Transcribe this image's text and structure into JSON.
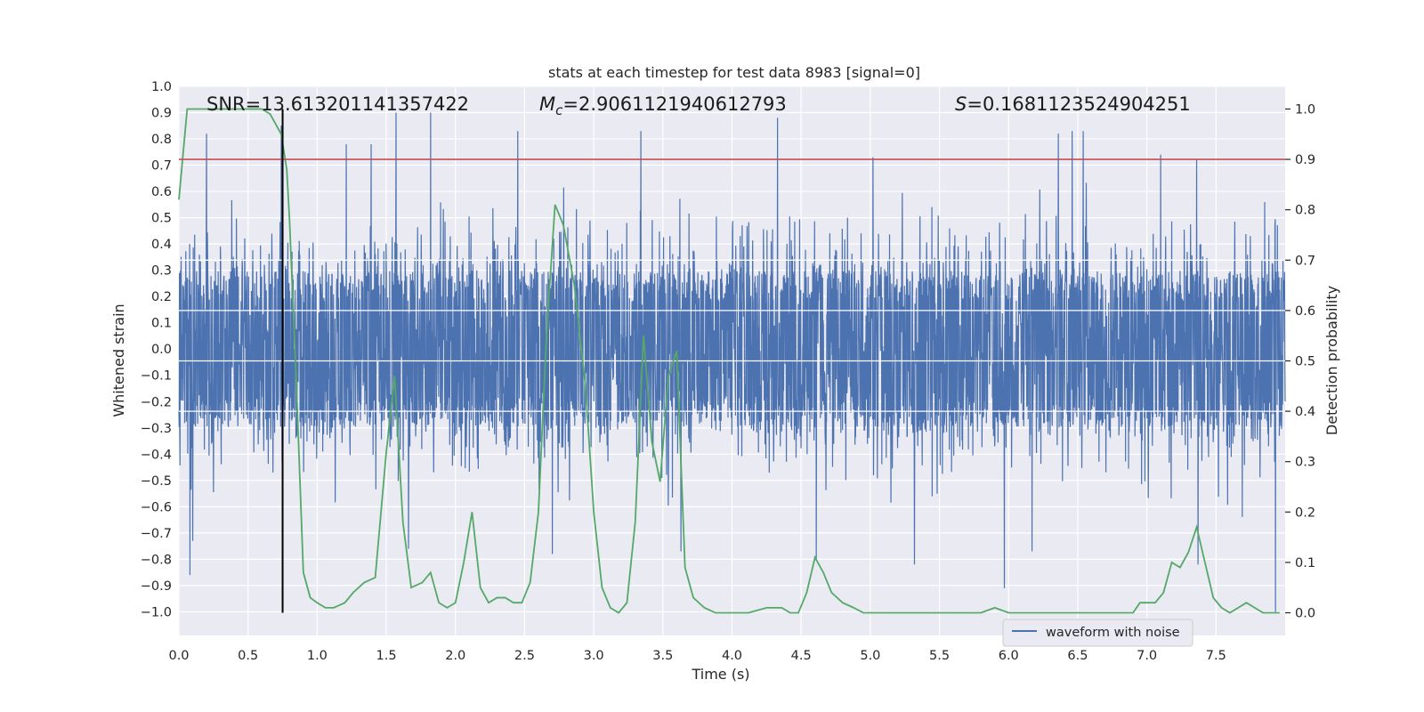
{
  "chart_data": {
    "type": "line",
    "title": "stats at each timestep for test data 8983 [signal=0]",
    "xlabel": "Time (s)",
    "ylabel_left": "Whitened strain",
    "ylabel_right": "Detection probability",
    "xlim": [
      0.0,
      8.0
    ],
    "ylim_left": [
      -1.09,
      1.0
    ],
    "ylim_right": [
      -0.045,
      1.045
    ],
    "x_ticks": [
      "0.0",
      "0.5",
      "1.0",
      "1.5",
      "2.0",
      "2.5",
      "3.0",
      "3.5",
      "4.0",
      "4.5",
      "5.0",
      "5.5",
      "6.0",
      "6.5",
      "7.0",
      "7.5"
    ],
    "y_left_ticks": [
      "1.0",
      "0.9",
      "0.8",
      "0.7",
      "0.6",
      "0.5",
      "0.4",
      "0.3",
      "0.2",
      "0.1",
      "0.0",
      "−0.1",
      "−0.2",
      "−0.3",
      "−0.4",
      "−0.5",
      "−0.6",
      "−0.7",
      "−0.8",
      "−0.9",
      "−1.0"
    ],
    "y_right_ticks": [
      "1.0",
      "0.9",
      "0.8",
      "0.7",
      "0.6",
      "0.5",
      "0.4",
      "0.3",
      "0.2",
      "0.1",
      "0.0"
    ],
    "annotations": {
      "snr": "SNR=13.613201141357422",
      "mc_symbol": "M",
      "mc_sub": "c",
      "mc_value": "=2.9061121940612793",
      "s_symbol": "S",
      "s_value": "=0.1681123524904251"
    },
    "threshold": {
      "axis": "right",
      "value": 0.9,
      "color": "#c44e52"
    },
    "marker_time": {
      "x": 0.75,
      "color": "#000000"
    },
    "legend": {
      "label": "waveform with noise",
      "location": "lower-right"
    },
    "series": [
      {
        "name": "waveform with noise",
        "axis": "left",
        "color": "#4c72b0",
        "kind": "noise",
        "envelope": {
          "typical_amplitude": 0.33,
          "max": 0.9,
          "min": -1.0
        },
        "peaks": [
          {
            "x": 0.2,
            "y": 0.82
          },
          {
            "x": 0.74,
            "y": 0.85
          },
          {
            "x": 1.21,
            "y": 0.78
          },
          {
            "x": 1.39,
            "y": 0.78
          },
          {
            "x": 1.57,
            "y": 0.9
          },
          {
            "x": 1.82,
            "y": 0.9
          },
          {
            "x": 2.45,
            "y": 0.83
          },
          {
            "x": 3.34,
            "y": 0.83
          },
          {
            "x": 4.33,
            "y": 0.88
          },
          {
            "x": 5.02,
            "y": 0.73
          },
          {
            "x": 6.36,
            "y": 0.82
          },
          {
            "x": 6.46,
            "y": 0.83
          },
          {
            "x": 6.54,
            "y": 0.83
          },
          {
            "x": 7.1,
            "y": 0.74
          },
          {
            "x": 7.36,
            "y": 0.72
          }
        ],
        "troughs": [
          {
            "x": 0.08,
            "y": -0.86
          },
          {
            "x": 0.1,
            "y": -0.73
          },
          {
            "x": 1.66,
            "y": -0.76
          },
          {
            "x": 2.7,
            "y": -0.78
          },
          {
            "x": 3.63,
            "y": -0.77
          },
          {
            "x": 4.61,
            "y": -0.8
          },
          {
            "x": 5.32,
            "y": -0.82
          },
          {
            "x": 5.97,
            "y": -0.91
          },
          {
            "x": 6.17,
            "y": -0.77
          },
          {
            "x": 7.37,
            "y": -0.82
          },
          {
            "x": 7.93,
            "y": -1.0
          }
        ]
      },
      {
        "name": "detection probability",
        "axis": "right",
        "color": "#55a868",
        "x": [
          0.0,
          0.06,
          0.1,
          0.2,
          0.3,
          0.4,
          0.5,
          0.6,
          0.66,
          0.7,
          0.74,
          0.78,
          0.8,
          0.85,
          0.9,
          0.95,
          1.0,
          1.06,
          1.12,
          1.2,
          1.26,
          1.34,
          1.42,
          1.5,
          1.56,
          1.62,
          1.68,
          1.76,
          1.82,
          1.88,
          1.94,
          2.0,
          2.06,
          2.12,
          2.18,
          2.24,
          2.3,
          2.36,
          2.42,
          2.48,
          2.54,
          2.6,
          2.66,
          2.72,
          2.78,
          2.86,
          2.94,
          3.0,
          3.06,
          3.12,
          3.18,
          3.24,
          3.3,
          3.36,
          3.42,
          3.48,
          3.54,
          3.6,
          3.66,
          3.72,
          3.8,
          3.88,
          4.0,
          4.12,
          4.25,
          4.36,
          4.42,
          4.48,
          4.54,
          4.6,
          4.66,
          4.72,
          4.8,
          4.88,
          4.95,
          5.05,
          5.2,
          5.4,
          5.6,
          5.8,
          5.9,
          6.0,
          6.2,
          6.4,
          6.6,
          6.8,
          6.9,
          6.95,
          7.0,
          7.06,
          7.12,
          7.18,
          7.24,
          7.3,
          7.36,
          7.42,
          7.48,
          7.54,
          7.6,
          7.66,
          7.72,
          7.78,
          7.84,
          7.9,
          7.96
        ],
        "y": [
          0.82,
          1.0,
          1.0,
          1.0,
          1.0,
          1.0,
          1.0,
          1.0,
          0.99,
          0.97,
          0.95,
          0.88,
          0.78,
          0.45,
          0.08,
          0.03,
          0.02,
          0.01,
          0.01,
          0.02,
          0.04,
          0.06,
          0.07,
          0.32,
          0.47,
          0.18,
          0.05,
          0.06,
          0.08,
          0.02,
          0.01,
          0.02,
          0.1,
          0.2,
          0.05,
          0.02,
          0.03,
          0.03,
          0.02,
          0.02,
          0.06,
          0.2,
          0.56,
          0.81,
          0.77,
          0.65,
          0.45,
          0.2,
          0.05,
          0.01,
          0.0,
          0.02,
          0.18,
          0.55,
          0.34,
          0.26,
          0.47,
          0.52,
          0.09,
          0.03,
          0.01,
          0.0,
          0.0,
          0.0,
          0.01,
          0.01,
          0.0,
          0.0,
          0.04,
          0.11,
          0.08,
          0.04,
          0.02,
          0.01,
          0.0,
          0.0,
          0.0,
          0.0,
          0.0,
          0.0,
          0.01,
          0.0,
          0.0,
          0.0,
          0.0,
          0.0,
          0.0,
          0.02,
          0.02,
          0.02,
          0.04,
          0.1,
          0.09,
          0.12,
          0.17,
          0.1,
          0.03,
          0.01,
          0.0,
          0.01,
          0.02,
          0.01,
          0.0,
          0.0,
          0.0
        ]
      }
    ]
  }
}
